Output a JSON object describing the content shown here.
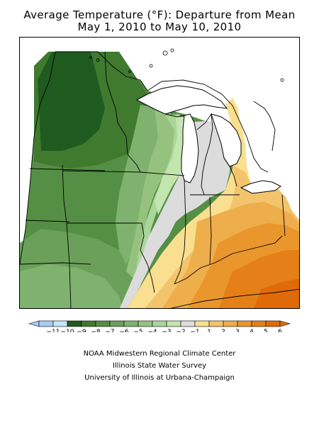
{
  "title": {
    "line1": "Average Temperature (°F): Departure from Mean",
    "line2": "May 1, 2010 to May 10, 2010"
  },
  "legend": {
    "colors": [
      "#a9ccf6",
      "#c6e4fa",
      "#1f5a1f",
      "#3f7a2f",
      "#558e45",
      "#6ba05a",
      "#7fb26e",
      "#95c37f",
      "#abd69b",
      "#c3e6af",
      "#dcdcdc",
      "#f9df8f",
      "#f3c46b",
      "#eeae4c",
      "#e9962d",
      "#e58019",
      "#e06a08"
    ],
    "labels": [
      "−11",
      "−10",
      "−9",
      "−8",
      "−7",
      "−6",
      "−5",
      "−4",
      "−3",
      "−2",
      "−1",
      "1",
      "2",
      "3",
      "4",
      "5",
      "6"
    ]
  },
  "credits": {
    "line1": "NOAA Midwestern Regional Climate Center",
    "line2": "Illinois State Water Survey",
    "line3": "University of Illinois at Urbana-Champaign"
  }
}
